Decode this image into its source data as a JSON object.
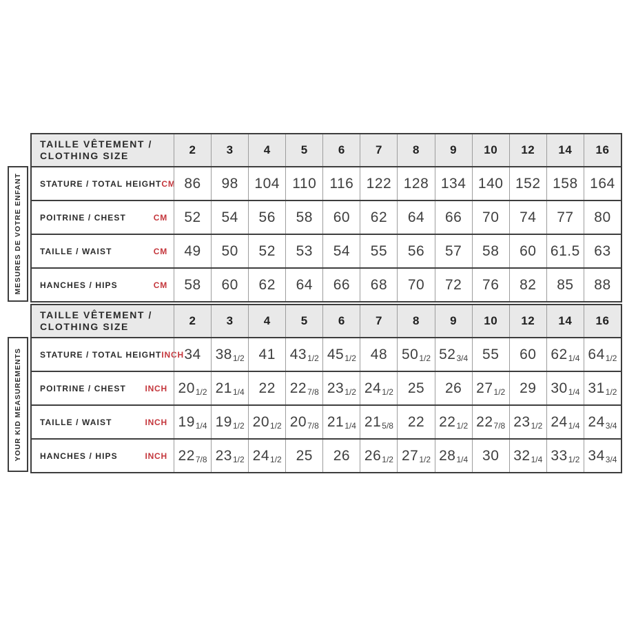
{
  "colors": {
    "accent_red": "#c4363c",
    "header_bg": "#e9e9e9",
    "border_dark": "#3d3d3d",
    "border_light": "#9c9c9c",
    "text_dark": "#2a2a2a",
    "text_number": "#3f3f3f"
  },
  "sizes_header": {
    "label_line1": "TAILLE VÊTEMENT /",
    "label_line2": "CLOTHING SIZE",
    "sizes": [
      "2",
      "3",
      "4",
      "5",
      "6",
      "7",
      "8",
      "9",
      "10",
      "12",
      "14",
      "16"
    ]
  },
  "sections": [
    {
      "side_label": "MESURES DE VOTRE ENFANT",
      "unit": "CM",
      "rows": [
        {
          "label": "STATURE / TOTAL HEIGHT",
          "values": [
            "86",
            "98",
            "104",
            "110",
            "116",
            "122",
            "128",
            "134",
            "140",
            "152",
            "158",
            "164"
          ]
        },
        {
          "label": "POITRINE / CHEST",
          "values": [
            "52",
            "54",
            "56",
            "58",
            "60",
            "62",
            "64",
            "66",
            "70",
            "74",
            "77",
            "80"
          ]
        },
        {
          "label": "TAILLE / WAIST",
          "values": [
            "49",
            "50",
            "52",
            "53",
            "54",
            "55",
            "56",
            "57",
            "58",
            "60",
            "61.5",
            "63"
          ]
        },
        {
          "label": "HANCHES / HIPS",
          "values": [
            "58",
            "60",
            "62",
            "64",
            "66",
            "68",
            "70",
            "72",
            "76",
            "82",
            "85",
            "88"
          ]
        }
      ]
    },
    {
      "side_label": "YOUR KID MEASUREMENTS",
      "unit": "INCH",
      "rows": [
        {
          "label": "STATURE / TOTAL HEIGHT",
          "values": [
            "34",
            "38 1/2",
            "41",
            "43 1/2",
            "45 1/2",
            "48",
            "50 1/2",
            "52 3/4",
            "55",
            "60",
            "62 1/4",
            "64 1/2"
          ]
        },
        {
          "label": "POITRINE / CHEST",
          "values": [
            "20 1/2",
            "21 1/4",
            "22",
            "22 7/8",
            "23 1/2",
            "24 1/2",
            "25",
            "26",
            "27 1/2",
            "29",
            "30 1/4",
            "31 1/2"
          ]
        },
        {
          "label": "TAILLE / WAIST",
          "values": [
            "19 1/4",
            "19 1/2",
            "20 1/2",
            "20 7/8",
            "21 1/4",
            "21 5/8",
            "22",
            "22 1/2",
            "22 7/8",
            "23 1/2",
            "24 1/4",
            "24 3/4"
          ]
        },
        {
          "label": "HANCHES / HIPS",
          "values": [
            "22 7/8",
            "23 1/2",
            "24 1/2",
            "25",
            "26",
            "26 1/2",
            "27 1/2",
            "28 1/4",
            "30",
            "32 1/4",
            "33 1/2",
            "34 3/4"
          ]
        }
      ]
    }
  ]
}
